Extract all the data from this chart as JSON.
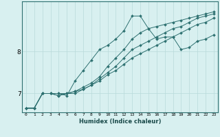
{
  "xlabel": "Humidex (Indice chaleur)",
  "bg_color": "#d8f0f0",
  "line_color": "#2d7070",
  "grid_color": "#b8dada",
  "xlim": [
    -0.5,
    23.5
  ],
  "ylim": [
    6.55,
    9.2
  ],
  "y_ticks": [
    7,
    8
  ],
  "x_ticks": [
    0,
    1,
    2,
    3,
    4,
    5,
    6,
    7,
    8,
    9,
    10,
    11,
    12,
    13,
    14,
    15,
    16,
    17,
    18,
    19,
    20,
    21,
    22,
    23
  ],
  "series": [
    [
      6.65,
      6.65,
      7.0,
      7.0,
      7.0,
      6.95,
      7.3,
      7.55,
      7.8,
      8.05,
      8.15,
      8.3,
      8.5,
      8.85,
      8.85,
      8.55,
      8.3,
      8.35,
      8.35,
      8.05,
      8.1,
      8.25,
      8.3,
      8.4
    ],
    [
      6.65,
      6.65,
      7.0,
      7.0,
      6.95,
      7.0,
      7.05,
      7.15,
      7.25,
      7.4,
      7.65,
      7.85,
      8.05,
      8.3,
      8.45,
      8.55,
      8.6,
      8.65,
      8.7,
      8.75,
      8.8,
      8.85,
      8.9,
      8.95
    ],
    [
      6.65,
      6.65,
      7.0,
      7.0,
      6.95,
      7.0,
      7.05,
      7.1,
      7.2,
      7.35,
      7.5,
      7.65,
      7.85,
      8.05,
      8.15,
      8.25,
      8.35,
      8.45,
      8.55,
      8.6,
      8.7,
      8.8,
      8.85,
      8.9
    ],
    [
      6.65,
      6.65,
      7.0,
      7.0,
      7.0,
      7.0,
      7.0,
      7.1,
      7.2,
      7.3,
      7.45,
      7.55,
      7.7,
      7.85,
      7.95,
      8.05,
      8.15,
      8.25,
      8.35,
      8.45,
      8.55,
      8.65,
      8.7,
      8.8
    ]
  ]
}
